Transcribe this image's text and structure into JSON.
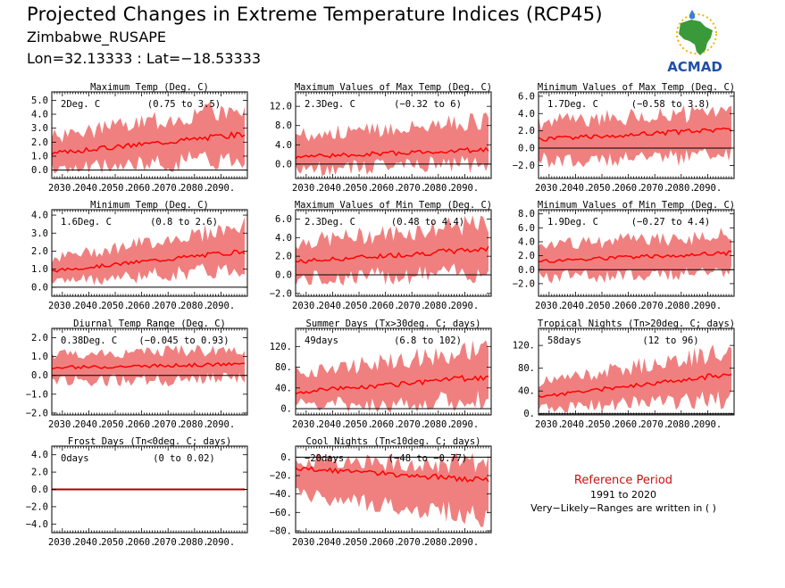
{
  "header": {
    "title": "Projected Changes in Extreme Temperature Indices (RCP45)",
    "station": "Zimbabwe_RUSAPE",
    "coords": "Lon=32.13333 : Lat=−18.53333"
  },
  "logo": {
    "text": "ACMAD",
    "icon": "africa-map-logo",
    "colors": {
      "map": "#3a9a3a",
      "text": "#1f4fa8",
      "sun": "#f2b400",
      "drop": "#3a7fd8"
    }
  },
  "colors": {
    "band": "#f08080",
    "line": "#ff0000",
    "zero": "#000000",
    "frost_line": "#aa0000"
  },
  "reference": {
    "title": "Reference Period",
    "years": "1991 to 2020",
    "note": "Very−Likely−Ranges are written in ( )"
  },
  "chart_data": [
    {
      "type": "area",
      "title": "Maximum Temp (Deg. C)",
      "value_label": "2Deg. C",
      "range_label": "(0.75 to 3.5)",
      "x_range": [
        2026,
        2100
      ],
      "x_ticks": [
        "2030.",
        "2040.",
        "2050.",
        "2060.",
        "2070.",
        "2080.",
        "2090."
      ],
      "ylim": [
        -0.6,
        5.6
      ],
      "y_ticks": [
        "0.0",
        "1.0",
        "2.0",
        "3.0",
        "4.0",
        "5.0"
      ],
      "y_tick_values": [
        0,
        1,
        2,
        3,
        4,
        5
      ],
      "median_start": 1.2,
      "median_end": 2.6,
      "lower_start": 0.0,
      "lower_end": 0.9,
      "upper_start": 2.4,
      "upper_end": 4.5
    },
    {
      "type": "area",
      "title": "Maximum Values of Max Temp (Deg. C)",
      "value_label": "2.3Deg. C",
      "range_label": "(−0.32 to 6)",
      "x_range": [
        2026,
        2100
      ],
      "x_ticks": [
        "2030.",
        "2040.",
        "2050.",
        "2060.",
        "2070.",
        "2080.",
        "2090."
      ],
      "ylim": [
        -3.0,
        15.0
      ],
      "y_ticks": [
        "0.0",
        "4.0",
        "8.0",
        "12.0"
      ],
      "y_tick_values": [
        0,
        4,
        8,
        12
      ],
      "median_start": 1.5,
      "median_end": 3.0,
      "lower_start": -1.0,
      "lower_end": 0.0,
      "upper_start": 6.0,
      "upper_end": 9.0
    },
    {
      "type": "area",
      "title": "Minimum Values of Max Temp (Deg. C)",
      "value_label": "1.7Deg. C",
      "range_label": "(−0.58 to 3.8)",
      "x_range": [
        2026,
        2100
      ],
      "x_ticks": [
        "2030.",
        "2040.",
        "2050.",
        "2060.",
        "2070.",
        "2080.",
        "2090."
      ],
      "ylim": [
        -3.5,
        6.5
      ],
      "y_ticks": [
        "−2.0",
        "0.0",
        "2.0",
        "4.0",
        "6.0"
      ],
      "y_tick_values": [
        -2,
        0,
        2,
        4,
        6
      ],
      "median_start": 1.0,
      "median_end": 2.2,
      "lower_start": -1.5,
      "lower_end": -0.8,
      "upper_start": 3.0,
      "upper_end": 4.2
    },
    {
      "type": "area",
      "title": "Minimum Temp (Deg. C)",
      "value_label": "1.6Deg. C",
      "range_label": "(0.8 to 2.6)",
      "x_range": [
        2026,
        2100
      ],
      "x_ticks": [
        "2030.",
        "2040.",
        "2050.",
        "2060.",
        "2070.",
        "2080.",
        "2090."
      ],
      "ylim": [
        -0.5,
        4.3
      ],
      "y_ticks": [
        "0.0",
        "1.0",
        "2.0",
        "3.0",
        "4.0"
      ],
      "y_tick_values": [
        0,
        1,
        2,
        3,
        4
      ],
      "median_start": 0.9,
      "median_end": 2.0,
      "lower_start": 0.3,
      "lower_end": 1.0,
      "upper_start": 1.6,
      "upper_end": 3.4
    },
    {
      "type": "area",
      "title": "Maximum Values of Min Temp (Deg. C)",
      "value_label": "2.3Deg. C",
      "range_label": "(0.48 to 4.4)",
      "x_range": [
        2026,
        2100
      ],
      "x_ticks": [
        "2030.",
        "2040.",
        "2050.",
        "2060.",
        "2070.",
        "2080.",
        "2090."
      ],
      "ylim": [
        -2.3,
        7.0
      ],
      "y_ticks": [
        "−2.0",
        "0.0",
        "2.0",
        "4.0",
        "6.0"
      ],
      "y_tick_values": [
        -2,
        0,
        2,
        4,
        6
      ],
      "median_start": 1.4,
      "median_end": 2.8,
      "lower_start": -0.5,
      "lower_end": 0.3,
      "upper_start": 3.5,
      "upper_end": 5.5
    },
    {
      "type": "area",
      "title": "Minimum Values of Min Temp (Deg. C)",
      "value_label": "1.9Deg. C",
      "range_label": "(−0.27 to 4.4)",
      "x_range": [
        2026,
        2100
      ],
      "x_ticks": [
        "2030.",
        "2040.",
        "2050.",
        "2060.",
        "2070.",
        "2080.",
        "2090."
      ],
      "ylim": [
        -3.8,
        8.6
      ],
      "y_ticks": [
        "−2.0",
        "0.0",
        "2.0",
        "4.0",
        "6.0",
        "8.0"
      ],
      "y_tick_values": [
        -2,
        0,
        2,
        4,
        6,
        8
      ],
      "median_start": 1.2,
      "median_end": 2.4,
      "lower_start": -1.0,
      "lower_end": -0.5,
      "upper_start": 3.5,
      "upper_end": 5.0
    },
    {
      "type": "area",
      "title": "Diurnal Temp Range (Deg. C)",
      "value_label": "0.38Deg. C",
      "range_label": "(−0.045 to 0.93)",
      "x_range": [
        2026,
        2100
      ],
      "x_ticks": [
        "2030.",
        "2040.",
        "2050.",
        "2060.",
        "2070.",
        "2080.",
        "2090."
      ],
      "ylim": [
        -2.1,
        2.5
      ],
      "y_ticks": [
        "−2.0",
        "−1.0",
        "0.0",
        "1.0",
        "2.0"
      ],
      "y_tick_values": [
        -2,
        -1,
        0,
        1,
        2
      ],
      "median_start": 0.4,
      "median_end": 0.6,
      "lower_start": -0.3,
      "lower_end": -0.2,
      "upper_start": 1.1,
      "upper_end": 1.4
    },
    {
      "type": "area",
      "title": "Summer Days (Tx>30deg. C; days)",
      "value_label": "49days",
      "range_label": "(6.8 to 102)",
      "x_range": [
        2026,
        2100
      ],
      "x_ticks": [
        "2030.",
        "2040.",
        "2050.",
        "2060.",
        "2070.",
        "2080.",
        "2090."
      ],
      "ylim": [
        -12,
        155
      ],
      "y_ticks": [
        "0.",
        "40.",
        "80.",
        "120."
      ],
      "y_tick_values": [
        0,
        40,
        80,
        120
      ],
      "median_start": 32,
      "median_end": 62,
      "lower_start": 5,
      "lower_end": 15,
      "upper_start": 70,
      "upper_end": 115
    },
    {
      "type": "area",
      "title": "Tropical Nights (Tn>20deg. C; days)",
      "value_label": "58days",
      "range_label": "(12 to 96)",
      "x_range": [
        2026,
        2100
      ],
      "x_ticks": [
        "2030.",
        "2040.",
        "2050.",
        "2060.",
        "2070.",
        "2080.",
        "2090."
      ],
      "ylim": [
        -2,
        150
      ],
      "y_ticks": [
        "0.",
        "40.",
        "80.",
        "120."
      ],
      "y_tick_values": [
        0,
        40,
        80,
        120
      ],
      "median_start": 30,
      "median_end": 70,
      "lower_start": 10,
      "lower_end": 25,
      "upper_start": 55,
      "upper_end": 110
    },
    {
      "type": "area",
      "title": "Frost Days (Tn<0deg. C; days)",
      "value_label": "0days",
      "range_label": "(0 to 0.02)",
      "x_range": [
        2026,
        2100
      ],
      "x_ticks": [
        "2030.",
        "2040.",
        "2050.",
        "2060.",
        "2070.",
        "2080.",
        "2090."
      ],
      "ylim": [
        -5.0,
        5.0
      ],
      "y_ticks": [
        "−4.0",
        "−2.0",
        "0.0",
        "2.0",
        "4.0"
      ],
      "y_tick_values": [
        -4,
        -2,
        0,
        2,
        4
      ],
      "median_start": 0,
      "median_end": 0,
      "lower_start": 0,
      "lower_end": 0,
      "upper_start": 0,
      "upper_end": 0
    },
    {
      "type": "area",
      "title": "Cool Nights (Tn<10deg. C; days)",
      "value_label": "−20days",
      "range_label": "(−48 to −0.77)",
      "x_range": [
        2026,
        2100
      ],
      "x_ticks": [
        "2030.",
        "2040.",
        "2050.",
        "2060.",
        "2070.",
        "2080.",
        "2090."
      ],
      "ylim": [
        -82,
        12
      ],
      "y_ticks": [
        "−80.",
        "−60.",
        "−40.",
        "−20.",
        "0."
      ],
      "y_tick_values": [
        -80,
        -60,
        -40,
        -20,
        0
      ],
      "median_start": -12,
      "median_end": -25,
      "lower_start": -40,
      "lower_end": -65,
      "upper_start": -3,
      "upper_end": -8
    }
  ]
}
